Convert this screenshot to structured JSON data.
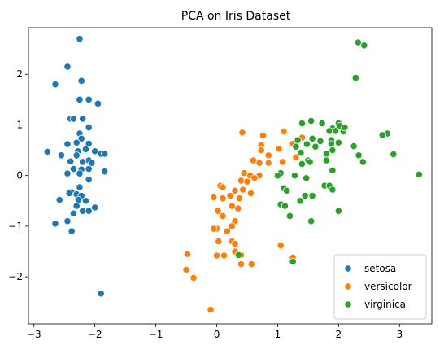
{
  "chart_data": {
    "type": "scatter",
    "title": "PCA on Iris Dataset",
    "xlabel": "",
    "ylabel": "",
    "xlim": [
      -3.09,
      3.53
    ],
    "ylim": [
      -2.93,
      2.92
    ],
    "xticks": [
      -3,
      -2,
      -1,
      0,
      1,
      2,
      3
    ],
    "yticks": [
      -2,
      -1,
      0,
      1,
      2
    ],
    "grid": false,
    "legend_position": "bottom-right",
    "series": [
      {
        "name": "setosa",
        "color": "#1f77b4",
        "points": [
          [
            -2.25,
            2.7
          ],
          [
            -2.45,
            2.15
          ],
          [
            -2.65,
            1.8
          ],
          [
            -2.22,
            1.87
          ],
          [
            -2.25,
            1.5
          ],
          [
            -2.1,
            1.5
          ],
          [
            -1.95,
            1.42
          ],
          [
            -2.4,
            1.12
          ],
          [
            -2.35,
            1.12
          ],
          [
            -2.2,
            1.12
          ],
          [
            -2.1,
            0.95
          ],
          [
            -2.25,
            0.83
          ],
          [
            -2.22,
            0.73
          ],
          [
            -2.3,
            0.65
          ],
          [
            -2.45,
            0.62
          ],
          [
            -2.1,
            0.63
          ],
          [
            -2.78,
            0.47
          ],
          [
            -2.28,
            0.48
          ],
          [
            -2.15,
            0.52
          ],
          [
            -2.0,
            0.48
          ],
          [
            -1.9,
            0.43
          ],
          [
            -1.84,
            0.43
          ],
          [
            -2.55,
            0.4
          ],
          [
            -2.3,
            0.4
          ],
          [
            -2.1,
            0.3
          ],
          [
            -2.4,
            0.28
          ],
          [
            -2.2,
            0.27
          ],
          [
            -2.05,
            0.25
          ],
          [
            -2.35,
            0.13
          ],
          [
            -2.22,
            0.12
          ],
          [
            -2.1,
            0.13
          ],
          [
            -1.84,
            0.08
          ],
          [
            -2.45,
            0.04
          ],
          [
            -2.25,
            0.04
          ],
          [
            -2.1,
            -0.08
          ],
          [
            -2.25,
            -0.23
          ],
          [
            -2.38,
            -0.33
          ],
          [
            -2.42,
            -0.35
          ],
          [
            -2.3,
            -0.37
          ],
          [
            -2.22,
            -0.4
          ],
          [
            -2.58,
            -0.48
          ],
          [
            -2.27,
            -0.48
          ],
          [
            -2.15,
            -0.5
          ],
          [
            -2.0,
            -0.63
          ],
          [
            -2.3,
            -0.6
          ],
          [
            -2.2,
            -0.7
          ],
          [
            -2.1,
            -0.7
          ],
          [
            -2.35,
            -0.75
          ],
          [
            -2.65,
            -0.95
          ],
          [
            -2.45,
            -0.9
          ],
          [
            -2.38,
            -1.1
          ],
          [
            -1.9,
            -2.33
          ]
        ]
      },
      {
        "name": "versicolor",
        "color": "#ff7f0e",
        "points": [
          [
            0.42,
            0.85
          ],
          [
            0.76,
            0.79
          ],
          [
            1.1,
            0.87
          ],
          [
            1.4,
            0.75
          ],
          [
            1.25,
            0.63
          ],
          [
            0.73,
            0.6
          ],
          [
            0.73,
            0.5
          ],
          [
            1.02,
            0.53
          ],
          [
            0.85,
            0.4
          ],
          [
            1.3,
            0.36
          ],
          [
            0.6,
            0.3
          ],
          [
            0.7,
            0.25
          ],
          [
            0.85,
            0.25
          ],
          [
            1.08,
            0.27
          ],
          [
            0.45,
            0.05
          ],
          [
            0.55,
            0.0
          ],
          [
            0.7,
            0.0
          ],
          [
            0.62,
            -0.05
          ],
          [
            0.06,
            -0.2
          ],
          [
            0.1,
            -0.23
          ],
          [
            0.4,
            -0.1
          ],
          [
            0.5,
            -0.12
          ],
          [
            0.3,
            -0.3
          ],
          [
            0.43,
            -0.28
          ],
          [
            0.56,
            -0.35
          ],
          [
            0.22,
            -0.4
          ],
          [
            0.37,
            -0.45
          ],
          [
            -0.05,
            -0.43
          ],
          [
            0.1,
            -0.45
          ],
          [
            0.25,
            -0.6
          ],
          [
            0.02,
            -0.7
          ],
          [
            0.1,
            -0.8
          ],
          [
            0.35,
            -0.65
          ],
          [
            0.3,
            -0.9
          ],
          [
            0.25,
            -1.0
          ],
          [
            0.17,
            -1.1
          ],
          [
            0.0,
            -1.05
          ],
          [
            -0.05,
            -1.05
          ],
          [
            0.03,
            -1.3
          ],
          [
            0.25,
            -1.3
          ],
          [
            0.3,
            -1.35
          ],
          [
            0.3,
            -1.5
          ],
          [
            1.05,
            -1.38
          ],
          [
            0.0,
            -1.58
          ],
          [
            0.12,
            -1.58
          ],
          [
            0.4,
            -1.57
          ],
          [
            0.4,
            -1.75
          ],
          [
            0.57,
            -1.75
          ],
          [
            1.25,
            -1.62
          ],
          [
            -0.48,
            -1.55
          ],
          [
            -0.5,
            -1.86
          ],
          [
            -0.38,
            -2.02
          ],
          [
            -0.1,
            -2.65
          ]
        ]
      },
      {
        "name": "virginica",
        "color": "#2ca02c",
        "points": [
          [
            2.32,
            2.63
          ],
          [
            2.42,
            2.57
          ],
          [
            2.28,
            1.93
          ],
          [
            1.55,
            1.08
          ],
          [
            1.4,
            1.03
          ],
          [
            1.73,
            1.03
          ],
          [
            2.0,
            1.03
          ],
          [
            2.02,
            0.98
          ],
          [
            1.9,
            0.93
          ],
          [
            1.85,
            0.88
          ],
          [
            1.95,
            0.88
          ],
          [
            2.08,
            0.87
          ],
          [
            2.1,
            0.95
          ],
          [
            2.8,
            0.83
          ],
          [
            2.72,
            0.8
          ],
          [
            1.33,
            0.7
          ],
          [
            1.57,
            0.73
          ],
          [
            1.7,
            0.68
          ],
          [
            1.88,
            0.7
          ],
          [
            2.0,
            0.65
          ],
          [
            1.48,
            0.62
          ],
          [
            1.62,
            0.57
          ],
          [
            1.88,
            0.62
          ],
          [
            1.3,
            0.57
          ],
          [
            1.38,
            0.45
          ],
          [
            2.25,
            0.58
          ],
          [
            1.9,
            0.5
          ],
          [
            1.8,
            0.43
          ],
          [
            2.33,
            0.4
          ],
          [
            2.9,
            0.42
          ],
          [
            1.5,
            0.3
          ],
          [
            1.53,
            0.27
          ],
          [
            1.8,
            0.3
          ],
          [
            2.4,
            0.27
          ],
          [
            1.4,
            0.23
          ],
          [
            1.9,
            0.1
          ],
          [
            1.05,
            0.05
          ],
          [
            1.0,
            0.0
          ],
          [
            1.28,
            0.0
          ],
          [
            1.47,
            -0.05
          ],
          [
            1.1,
            -0.25
          ],
          [
            1.15,
            -0.3
          ],
          [
            1.45,
            -0.4
          ],
          [
            1.77,
            -0.2
          ],
          [
            1.85,
            -0.2
          ],
          [
            1.9,
            -0.28
          ],
          [
            1.57,
            -0.4
          ],
          [
            1.37,
            -0.5
          ],
          [
            1.05,
            -0.57
          ],
          [
            1.12,
            -0.6
          ],
          [
            1.2,
            -0.8
          ],
          [
            2.0,
            -0.7
          ],
          [
            1.55,
            -0.9
          ],
          [
            0.36,
            -1.57
          ],
          [
            1.25,
            -1.7
          ],
          [
            3.32,
            0.02
          ]
        ]
      }
    ]
  }
}
